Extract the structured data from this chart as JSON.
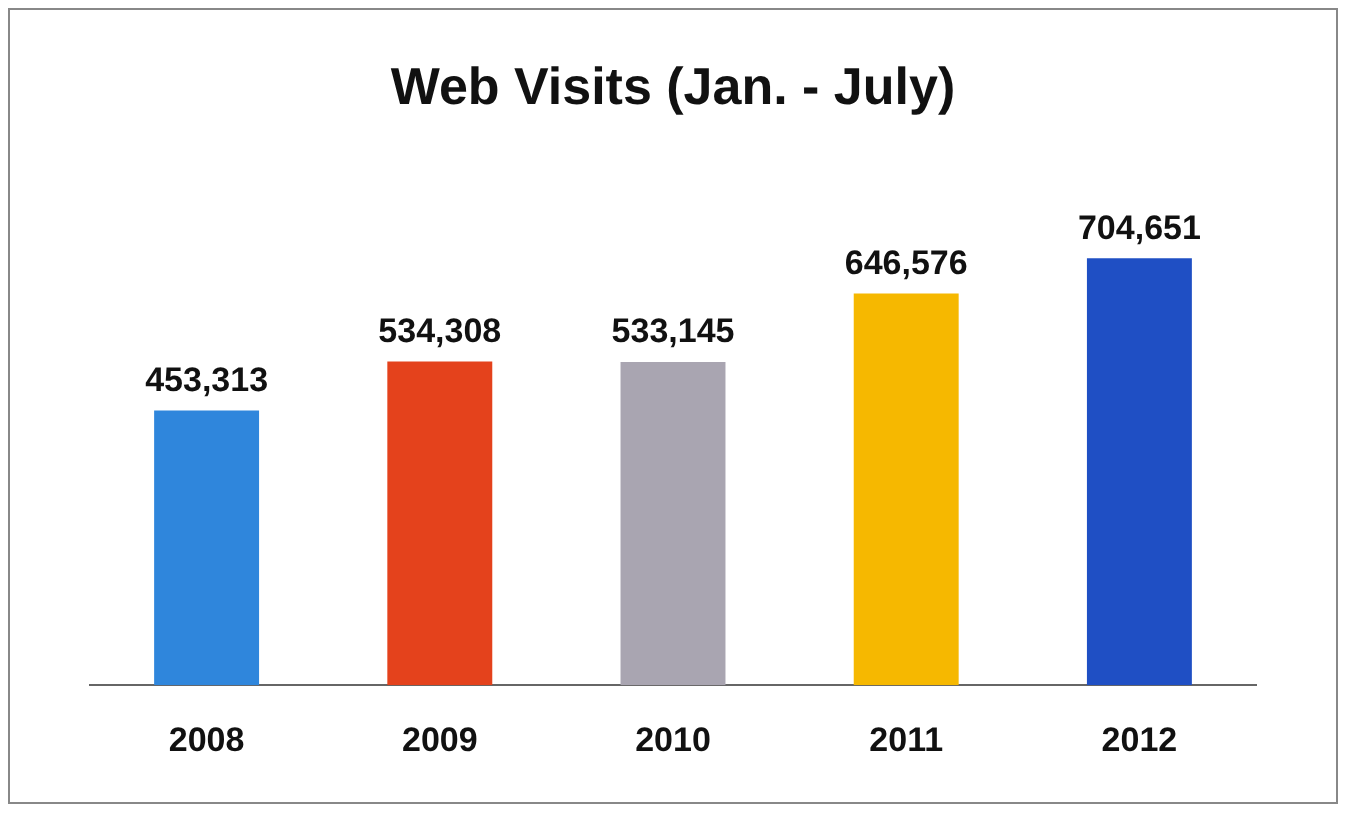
{
  "chart_data": {
    "type": "bar",
    "title": "Web Visits (Jan. - July)",
    "categories": [
      "2008",
      "2009",
      "2010",
      "2011",
      "2012"
    ],
    "values": [
      453313,
      534308,
      533145,
      646576,
      704651
    ],
    "colors": [
      "#2f86dc",
      "#e4421c",
      "#a9a5b1",
      "#f6b800",
      "#1f4fc4"
    ],
    "value_labels": [
      "453,313",
      "534,308",
      "533,145",
      "646,576",
      "704,651"
    ],
    "tick_labels": "x",
    "grid": false,
    "legend": false
  }
}
